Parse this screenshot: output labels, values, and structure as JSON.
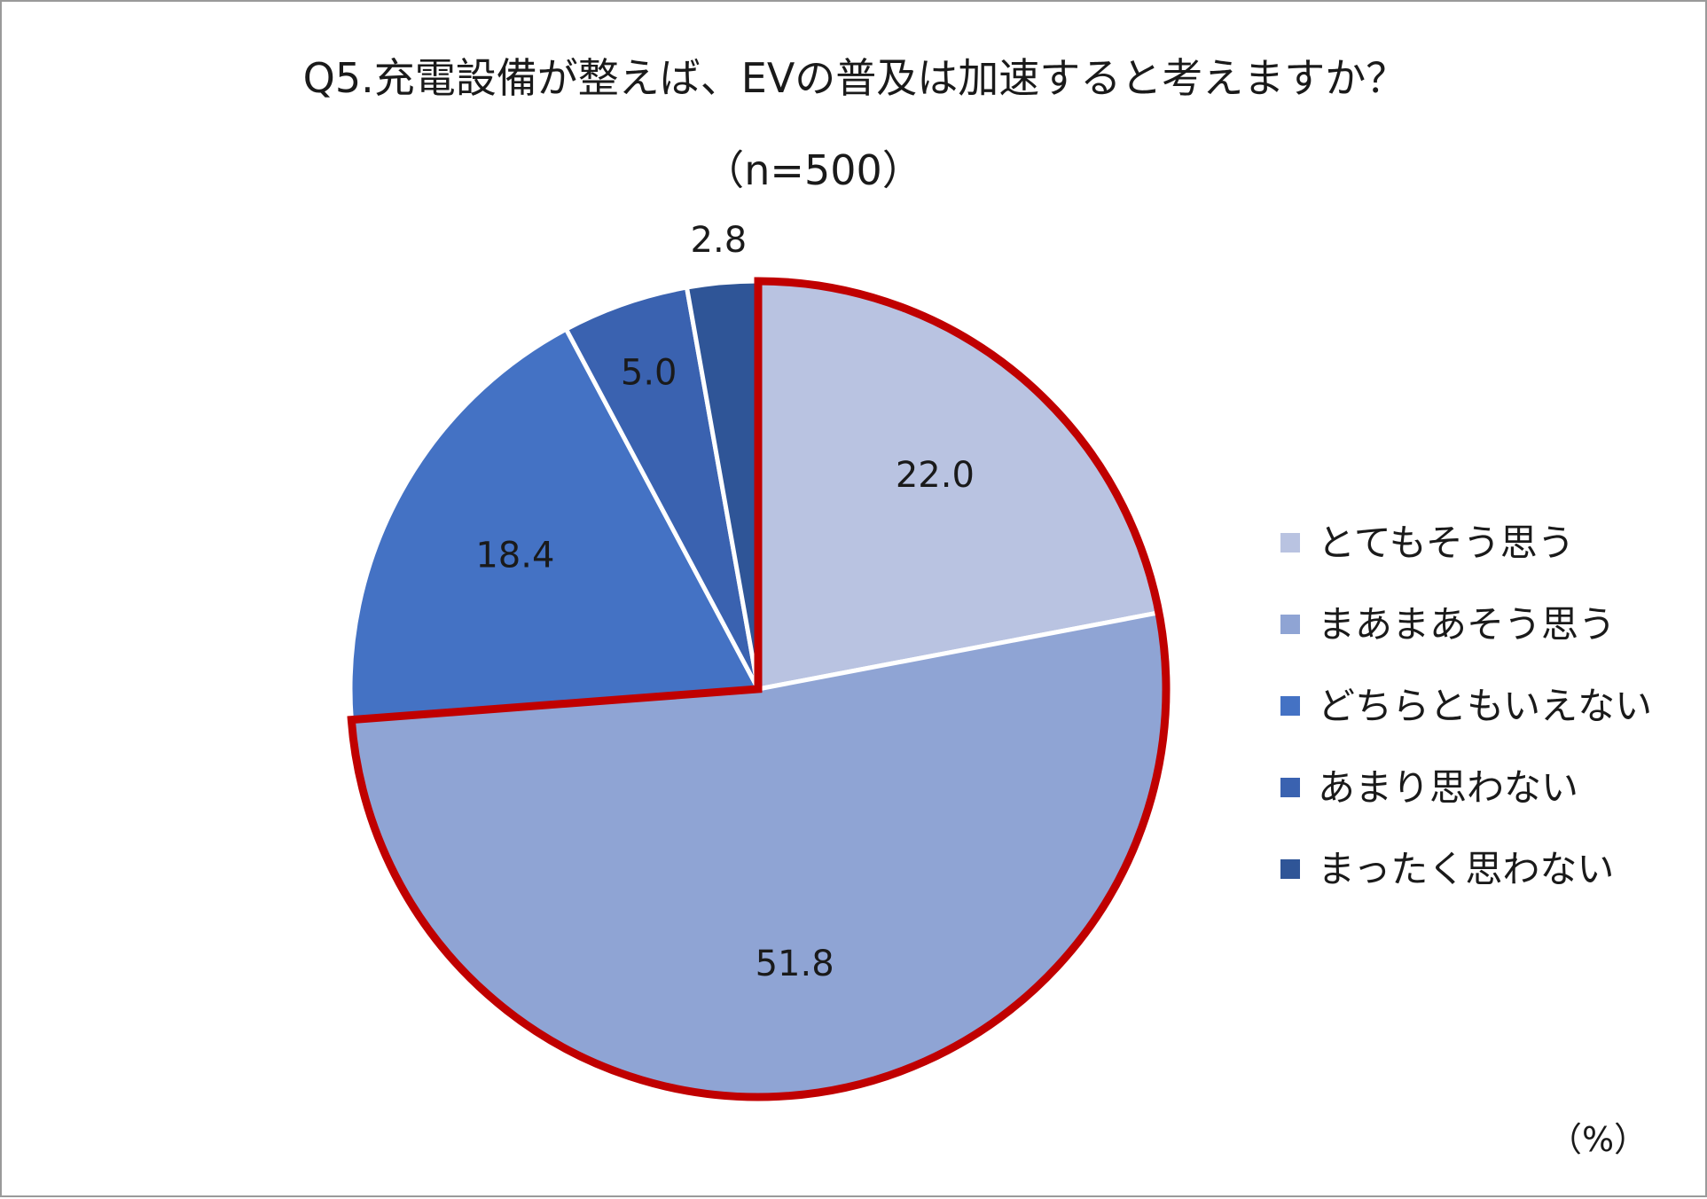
{
  "chart_data": {
    "type": "pie",
    "title": "Q5.充電設備が整えば、EVの普及は加速すると考えますか？",
    "subtitle": "（n=500）",
    "unit_label": "（%）",
    "categories": [
      "とてもそう思う",
      "まあまあそう思う",
      "どちらともいえない",
      "あまり思わない",
      "まったく思わない"
    ],
    "values": [
      22.0,
      51.8,
      18.4,
      5.0,
      2.8
    ],
    "value_labels": [
      "22.0",
      "51.8",
      "18.4",
      "5.0",
      "2.8"
    ],
    "colors": [
      "#b9c3e1",
      "#8fa4d4",
      "#4472c4",
      "#3a62b0",
      "#2f5597"
    ],
    "highlight": {
      "categories": [
        "とてもそう思う",
        "まあまあそう思う"
      ],
      "outline_color": "#c00000"
    },
    "legend_position": "right",
    "start_angle": "12 o'clock",
    "direction": "clockwise"
  }
}
